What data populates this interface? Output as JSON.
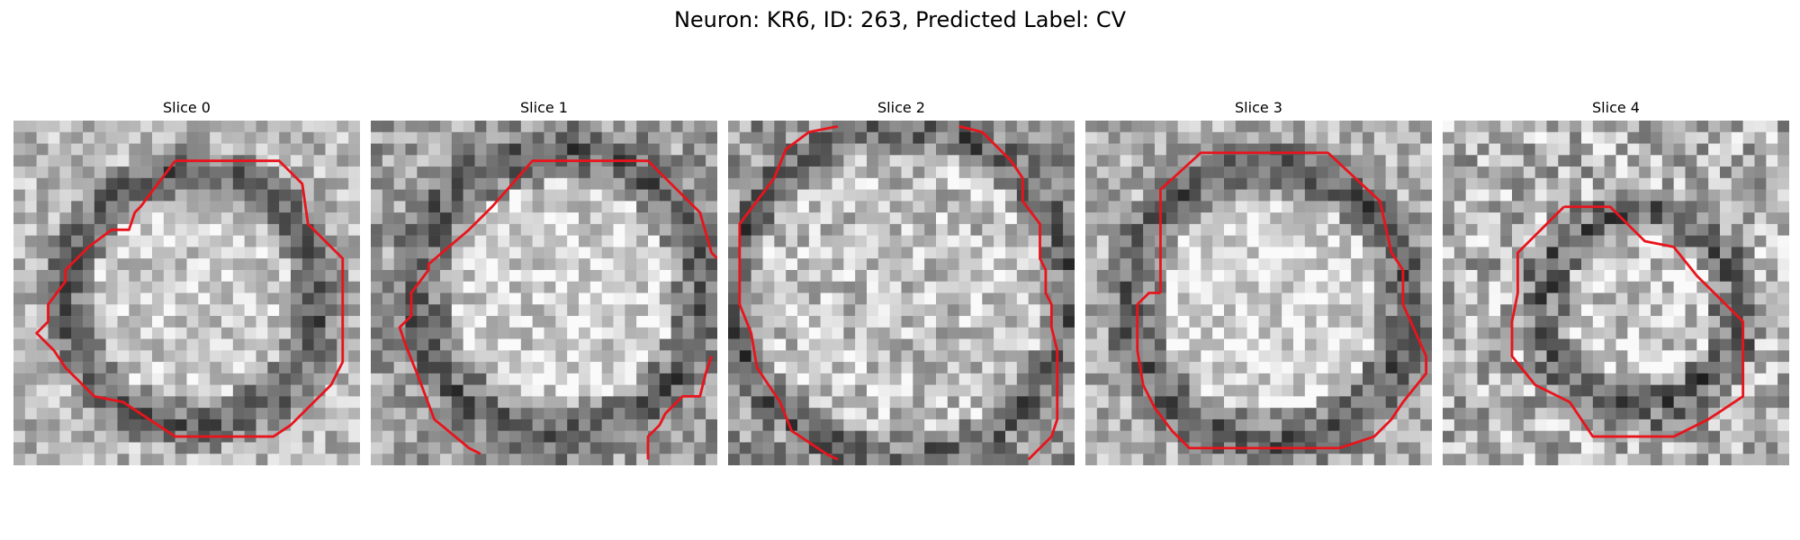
{
  "figure": {
    "title": "Neuron: KR6, ID: 263, Predicted Label: CV"
  },
  "panels": [
    {
      "title": "Slice 0"
    },
    {
      "title": "Slice 1"
    },
    {
      "title": "Slice 2"
    },
    {
      "title": "Slice 3"
    },
    {
      "title": "Slice 4"
    }
  ],
  "colors": {
    "contour": "#e8141c",
    "background": "#ffffff"
  }
}
